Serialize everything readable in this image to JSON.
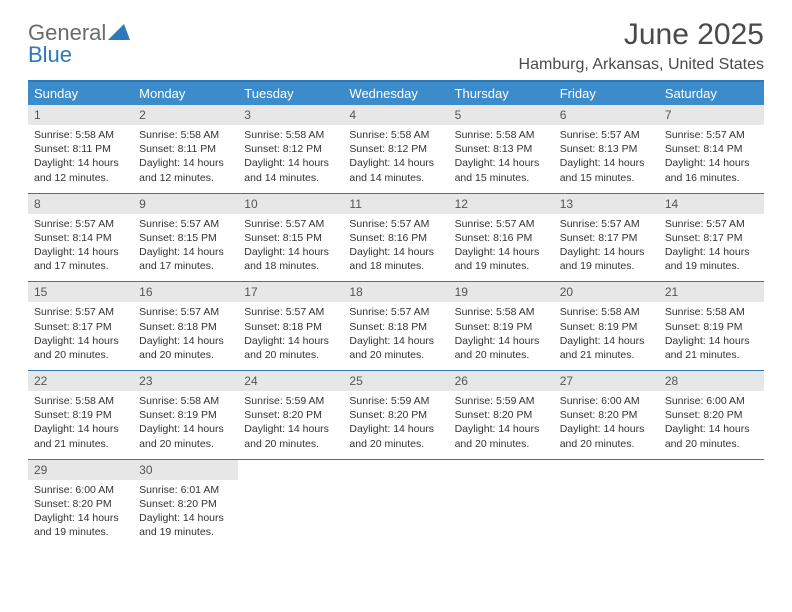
{
  "brand": {
    "word1": "General",
    "word2": "Blue",
    "word1_color": "#6b6b6b",
    "word2_color": "#2f78b7",
    "sail_color": "#2f78b7"
  },
  "title": "June 2025",
  "location": "Hamburg, Arkansas, United States",
  "colors": {
    "header_bg": "#3c8ccc",
    "header_text": "#ffffff",
    "row_border": "#2f78b7",
    "daynum_bg": "#e7e7e7",
    "body_text": "#333333",
    "page_bg": "#ffffff"
  },
  "fonts": {
    "title_size_pt": 30,
    "location_size_pt": 16,
    "header_size_pt": 13,
    "daynum_size_pt": 12,
    "body_size_pt": 10.5
  },
  "weekdays": [
    "Sunday",
    "Monday",
    "Tuesday",
    "Wednesday",
    "Thursday",
    "Friday",
    "Saturday"
  ],
  "days": [
    {
      "n": "1",
      "sunrise": "5:58 AM",
      "sunset": "8:11 PM",
      "daylight": "14 hours and 12 minutes."
    },
    {
      "n": "2",
      "sunrise": "5:58 AM",
      "sunset": "8:11 PM",
      "daylight": "14 hours and 12 minutes."
    },
    {
      "n": "3",
      "sunrise": "5:58 AM",
      "sunset": "8:12 PM",
      "daylight": "14 hours and 14 minutes."
    },
    {
      "n": "4",
      "sunrise": "5:58 AM",
      "sunset": "8:12 PM",
      "daylight": "14 hours and 14 minutes."
    },
    {
      "n": "5",
      "sunrise": "5:58 AM",
      "sunset": "8:13 PM",
      "daylight": "14 hours and 15 minutes."
    },
    {
      "n": "6",
      "sunrise": "5:57 AM",
      "sunset": "8:13 PM",
      "daylight": "14 hours and 15 minutes."
    },
    {
      "n": "7",
      "sunrise": "5:57 AM",
      "sunset": "8:14 PM",
      "daylight": "14 hours and 16 minutes."
    },
    {
      "n": "8",
      "sunrise": "5:57 AM",
      "sunset": "8:14 PM",
      "daylight": "14 hours and 17 minutes."
    },
    {
      "n": "9",
      "sunrise": "5:57 AM",
      "sunset": "8:15 PM",
      "daylight": "14 hours and 17 minutes."
    },
    {
      "n": "10",
      "sunrise": "5:57 AM",
      "sunset": "8:15 PM",
      "daylight": "14 hours and 18 minutes."
    },
    {
      "n": "11",
      "sunrise": "5:57 AM",
      "sunset": "8:16 PM",
      "daylight": "14 hours and 18 minutes."
    },
    {
      "n": "12",
      "sunrise": "5:57 AM",
      "sunset": "8:16 PM",
      "daylight": "14 hours and 19 minutes."
    },
    {
      "n": "13",
      "sunrise": "5:57 AM",
      "sunset": "8:17 PM",
      "daylight": "14 hours and 19 minutes."
    },
    {
      "n": "14",
      "sunrise": "5:57 AM",
      "sunset": "8:17 PM",
      "daylight": "14 hours and 19 minutes."
    },
    {
      "n": "15",
      "sunrise": "5:57 AM",
      "sunset": "8:17 PM",
      "daylight": "14 hours and 20 minutes."
    },
    {
      "n": "16",
      "sunrise": "5:57 AM",
      "sunset": "8:18 PM",
      "daylight": "14 hours and 20 minutes."
    },
    {
      "n": "17",
      "sunrise": "5:57 AM",
      "sunset": "8:18 PM",
      "daylight": "14 hours and 20 minutes."
    },
    {
      "n": "18",
      "sunrise": "5:57 AM",
      "sunset": "8:18 PM",
      "daylight": "14 hours and 20 minutes."
    },
    {
      "n": "19",
      "sunrise": "5:58 AM",
      "sunset": "8:19 PM",
      "daylight": "14 hours and 20 minutes."
    },
    {
      "n": "20",
      "sunrise": "5:58 AM",
      "sunset": "8:19 PM",
      "daylight": "14 hours and 21 minutes."
    },
    {
      "n": "21",
      "sunrise": "5:58 AM",
      "sunset": "8:19 PM",
      "daylight": "14 hours and 21 minutes."
    },
    {
      "n": "22",
      "sunrise": "5:58 AM",
      "sunset": "8:19 PM",
      "daylight": "14 hours and 21 minutes."
    },
    {
      "n": "23",
      "sunrise": "5:58 AM",
      "sunset": "8:19 PM",
      "daylight": "14 hours and 20 minutes."
    },
    {
      "n": "24",
      "sunrise": "5:59 AM",
      "sunset": "8:20 PM",
      "daylight": "14 hours and 20 minutes."
    },
    {
      "n": "25",
      "sunrise": "5:59 AM",
      "sunset": "8:20 PM",
      "daylight": "14 hours and 20 minutes."
    },
    {
      "n": "26",
      "sunrise": "5:59 AM",
      "sunset": "8:20 PM",
      "daylight": "14 hours and 20 minutes."
    },
    {
      "n": "27",
      "sunrise": "6:00 AM",
      "sunset": "8:20 PM",
      "daylight": "14 hours and 20 minutes."
    },
    {
      "n": "28",
      "sunrise": "6:00 AM",
      "sunset": "8:20 PM",
      "daylight": "14 hours and 20 minutes."
    },
    {
      "n": "29",
      "sunrise": "6:00 AM",
      "sunset": "8:20 PM",
      "daylight": "14 hours and 19 minutes."
    },
    {
      "n": "30",
      "sunrise": "6:01 AM",
      "sunset": "8:20 PM",
      "daylight": "14 hours and 19 minutes."
    }
  ],
  "labels": {
    "sunrise": "Sunrise:",
    "sunset": "Sunset:",
    "daylight": "Daylight:"
  }
}
